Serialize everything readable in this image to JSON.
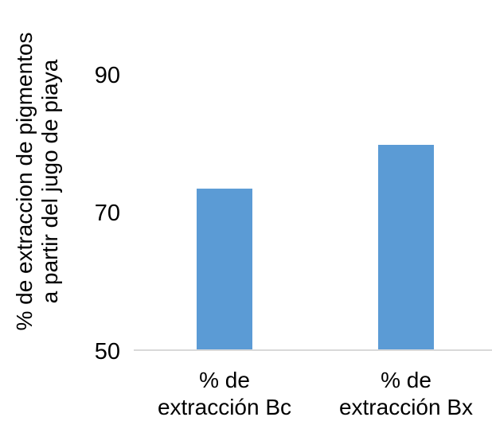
{
  "chart_data": {
    "type": "bar",
    "title": "",
    "xlabel": "",
    "ylabel_lines": [
      "% de extraccion de pigmentos",
      "a partir del jugo de piaya"
    ],
    "categories": [
      [
        "% de",
        "extracción Bc"
      ],
      [
        "% de",
        "extracción Bx"
      ]
    ],
    "values": [
      73.6,
      80.0
    ],
    "ylim": [
      50,
      90
    ],
    "yticks": [
      "50",
      "70",
      "90"
    ],
    "ytick_values": [
      50,
      70,
      90
    ],
    "grid": false,
    "legend": "none",
    "bar_color": "#5b9bd5",
    "axis_color": "#d9d9d9"
  }
}
